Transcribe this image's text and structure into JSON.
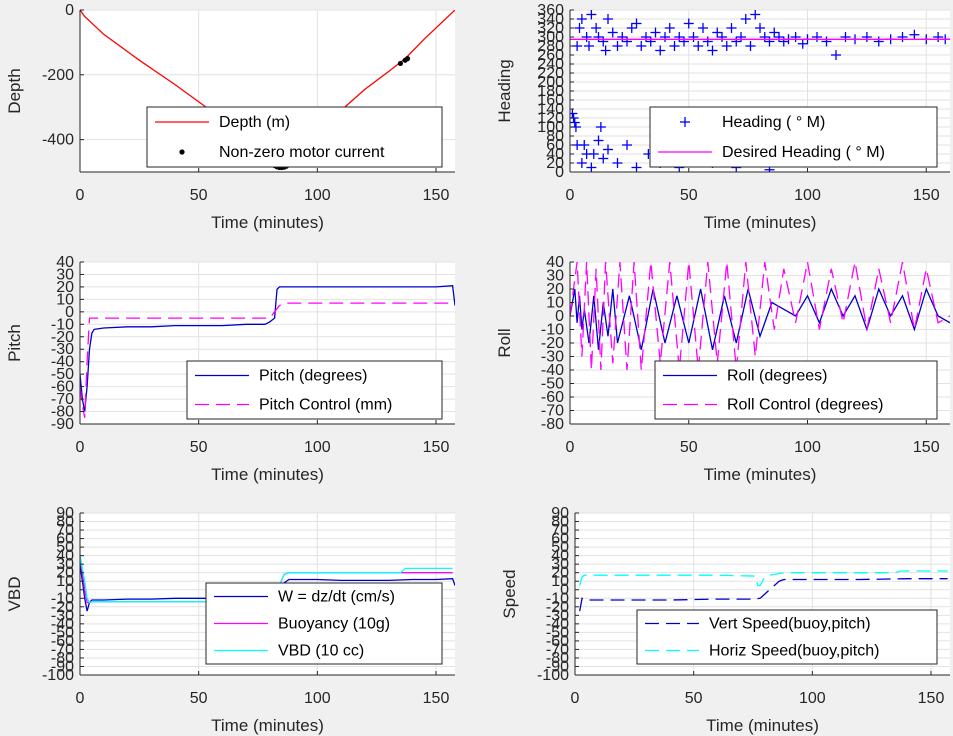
{
  "chart_data": [
    {
      "id": "depth",
      "type": "line",
      "xlabel": "Time (minutes)",
      "ylabel": "Depth",
      "xlim": [
        0,
        158
      ],
      "ylim": [
        -500,
        0
      ],
      "xticks": [
        0,
        50,
        100,
        150
      ],
      "yticks": [
        0,
        -200,
        -400
      ],
      "grid": true,
      "legend_position": "lower-right",
      "series": [
        {
          "name": "Depth (m)",
          "style": "line",
          "color": "#ff0000",
          "x": [
            0,
            2,
            10,
            25,
            40,
            55,
            70,
            78,
            82,
            85,
            88,
            92,
            100,
            110,
            120,
            130,
            137,
            145,
            158
          ],
          "y": [
            0,
            -20,
            -75,
            -155,
            -230,
            -310,
            -400,
            -455,
            -480,
            -487,
            -480,
            -450,
            -380,
            -310,
            -245,
            -190,
            -150,
            -90,
            0
          ]
        },
        {
          "name": "Non-zero motor current",
          "style": "dots",
          "color": "#000000",
          "x": [
            81,
            82,
            83,
            84,
            85,
            86,
            87,
            88,
            135,
            137,
            138
          ],
          "y": [
            -476,
            -480,
            -484,
            -486,
            -486,
            -485,
            -482,
            -478,
            -165,
            -155,
            -150
          ]
        }
      ]
    },
    {
      "id": "heading",
      "type": "scatter",
      "xlabel": "Time (minutes)",
      "ylabel": "Heading",
      "xlim": [
        0,
        160
      ],
      "ylim": [
        0,
        360
      ],
      "xticks": [
        0,
        50,
        100,
        150
      ],
      "yticks": [
        0,
        20,
        40,
        60,
        80,
        100,
        120,
        140,
        160,
        180,
        200,
        220,
        240,
        260,
        280,
        300,
        320,
        340,
        360
      ],
      "grid": true,
      "legend_position": "lower-right",
      "series": [
        {
          "name": "Heading (   ° M)",
          "style": "plus",
          "color": "#0000ff",
          "x": [
            1,
            1.5,
            2,
            2.5,
            3,
            4,
            5,
            6,
            7,
            8,
            9,
            10,
            11,
            12,
            13,
            14,
            15,
            16,
            18,
            20,
            22,
            24,
            26,
            28,
            30,
            32,
            34,
            36,
            38,
            40,
            42,
            44,
            46,
            48,
            50,
            52,
            54,
            56,
            58,
            60,
            62,
            64,
            66,
            68,
            70,
            72,
            74,
            76,
            78,
            80,
            82,
            84,
            86,
            88,
            90,
            92,
            95,
            98,
            100,
            104,
            108,
            112,
            116,
            120,
            125,
            130,
            135,
            140,
            145,
            150,
            155,
            158,
            3,
            5,
            7,
            9,
            12,
            14,
            16,
            20,
            24,
            28,
            33,
            38,
            42,
            46,
            50,
            55,
            60,
            65,
            70,
            74,
            78,
            84
          ],
          "y": [
            130,
            120,
            110,
            100,
            280,
            320,
            340,
            60,
            300,
            280,
            350,
            40,
            320,
            300,
            100,
            290,
            270,
            340,
            310,
            280,
            300,
            290,
            320,
            330,
            280,
            300,
            290,
            310,
            270,
            300,
            320,
            280,
            300,
            290,
            330,
            300,
            280,
            320,
            290,
            270,
            310,
            300,
            280,
            320,
            290,
            300,
            340,
            280,
            350,
            320,
            300,
            290,
            310,
            300,
            290,
            295,
            300,
            285,
            295,
            300,
            290,
            260,
            300,
            295,
            300,
            290,
            295,
            300,
            305,
            295,
            300,
            295,
            60,
            20,
            40,
            10,
            70,
            30,
            50,
            20,
            60,
            10,
            40,
            20,
            50,
            10,
            30,
            60,
            20,
            40,
            10,
            30,
            50,
            5
          ]
        },
        {
          "name": "Desired Heading (    ° M)",
          "style": "line",
          "color": "#ff00ff",
          "x": [
            0,
            160
          ],
          "y": [
            295,
            295
          ]
        }
      ]
    },
    {
      "id": "pitch",
      "type": "line",
      "xlabel": "Time (minutes)",
      "ylabel": "Pitch",
      "xlim": [
        0,
        158
      ],
      "ylim": [
        -90,
        40
      ],
      "xticks": [
        0,
        50,
        100,
        150
      ],
      "yticks": [
        40,
        30,
        20,
        10,
        0,
        -10,
        -20,
        -30,
        -40,
        -50,
        -60,
        -70,
        -80,
        -90
      ],
      "grid": true,
      "legend_position": "lower-right",
      "series": [
        {
          "name": "Pitch (degrees)",
          "style": "line",
          "color": "#0000cc",
          "x": [
            0,
            1,
            2,
            3,
            4,
            5,
            6,
            10,
            20,
            30,
            40,
            50,
            60,
            70,
            78,
            80,
            82,
            83,
            84,
            90,
            100,
            110,
            120,
            130,
            140,
            150,
            157,
            158
          ],
          "y": [
            -50,
            -70,
            -80,
            -60,
            -30,
            -17,
            -14,
            -13,
            -12,
            -12,
            -11,
            -11,
            -11,
            -10,
            -10,
            -8,
            -5,
            18,
            20,
            20,
            20,
            20,
            20,
            20,
            20,
            20,
            21,
            5
          ]
        },
        {
          "name": "Pitch Control (mm)",
          "style": "dashed",
          "color": "#ff00ff",
          "x": [
            0,
            1,
            2,
            3,
            4,
            5,
            80,
            82,
            84,
            86,
            157
          ],
          "y": [
            -60,
            -75,
            -85,
            -40,
            -5,
            -5,
            -5,
            0,
            5,
            7,
            7
          ]
        }
      ]
    },
    {
      "id": "roll",
      "type": "line",
      "xlabel": "Time (minutes)",
      "ylabel": "Roll",
      "xlim": [
        0,
        160
      ],
      "ylim": [
        -80,
        40
      ],
      "xticks": [
        0,
        50,
        100,
        150
      ],
      "yticks": [
        40,
        30,
        20,
        10,
        0,
        -10,
        -20,
        -30,
        -40,
        -50,
        -60,
        -70,
        -80
      ],
      "grid": true,
      "legend_position": "lower-right",
      "series": [
        {
          "name": "Roll (degrees)",
          "style": "line",
          "color": "#0000cc",
          "x": [
            0,
            1,
            2,
            3,
            4,
            5,
            6,
            8,
            10,
            12,
            14,
            16,
            18,
            20,
            25,
            30,
            35,
            40,
            45,
            50,
            55,
            60,
            65,
            70,
            75,
            80,
            85,
            90,
            95,
            100,
            105,
            110,
            115,
            120,
            125,
            130,
            135,
            140,
            145,
            150,
            155,
            160
          ],
          "y": [
            0,
            10,
            20,
            -5,
            15,
            -10,
            5,
            -20,
            15,
            -25,
            10,
            -15,
            20,
            -20,
            15,
            -25,
            20,
            -20,
            15,
            -20,
            20,
            -25,
            15,
            -20,
            20,
            -15,
            10,
            5,
            0,
            15,
            -5,
            20,
            0,
            15,
            -10,
            20,
            0,
            15,
            -10,
            20,
            0,
            -5
          ]
        },
        {
          "name": "Roll Control (degrees)",
          "style": "dashed",
          "color": "#ff00ff",
          "x": [
            0,
            3,
            5,
            7,
            9,
            11,
            13,
            15,
            18,
            21,
            24,
            27,
            30,
            34,
            38,
            42,
            46,
            50,
            54,
            58,
            62,
            66,
            70,
            74,
            78,
            82,
            86,
            90,
            95,
            100,
            105,
            110,
            115,
            120,
            125,
            130,
            135,
            140,
            145,
            150,
            155,
            160
          ],
          "y": [
            0,
            40,
            -30,
            40,
            -40,
            35,
            -40,
            40,
            -35,
            40,
            -40,
            40,
            -40,
            40,
            -35,
            40,
            -40,
            40,
            -40,
            40,
            -35,
            40,
            -40,
            40,
            -30,
            40,
            -10,
            35,
            -5,
            40,
            -10,
            35,
            -5,
            40,
            -10,
            35,
            -5,
            40,
            -10,
            35,
            -5,
            0
          ]
        }
      ]
    },
    {
      "id": "vbd",
      "type": "line",
      "xlabel": "Time (minutes)",
      "ylabel": "VBD",
      "xlim": [
        0,
        158
      ],
      "ylim": [
        -100,
        90
      ],
      "xticks": [
        0,
        50,
        100,
        150
      ],
      "yticks": [
        90,
        80,
        70,
        60,
        50,
        40,
        30,
        20,
        10,
        0,
        -10,
        -20,
        -30,
        -40,
        -50,
        -60,
        -70,
        -80,
        -90,
        -100
      ],
      "grid": true,
      "legend_position": "lower-right",
      "series": [
        {
          "name": "W = dz/dt (cm/s)",
          "style": "line",
          "color": "#0000cc",
          "x": [
            0,
            1,
            2,
            3,
            4,
            5,
            10,
            20,
            30,
            40,
            50,
            60,
            70,
            80,
            82,
            84,
            86,
            88,
            90,
            100,
            110,
            120,
            130,
            140,
            150,
            157,
            158
          ],
          "y": [
            30,
            10,
            -10,
            -25,
            -15,
            -12,
            -12,
            -11,
            -11,
            -10,
            -10,
            -10,
            -10,
            -9,
            -5,
            0,
            8,
            12,
            12,
            12,
            11,
            11,
            11,
            12,
            12,
            13,
            5
          ]
        },
        {
          "name": "Buoyancy (10g)",
          "style": "line",
          "color": "#ff00ff",
          "x": [
            0,
            2,
            3,
            4,
            5,
            80,
            82,
            84,
            86,
            88,
            157
          ],
          "y": [
            40,
            0,
            -15,
            -15,
            -14,
            -14,
            -8,
            5,
            18,
            20,
            20
          ]
        },
        {
          "name": "VBD (10 cc)",
          "style": "line",
          "color": "#00ffff",
          "x": [
            0,
            2,
            3,
            4,
            5,
            80,
            82,
            84,
            86,
            88,
            135,
            137,
            157
          ],
          "y": [
            40,
            10,
            -10,
            -15,
            -14,
            -14,
            -8,
            5,
            18,
            20,
            20,
            25,
            25
          ]
        }
      ]
    },
    {
      "id": "speed",
      "type": "line",
      "xlabel": "Time (minutes)",
      "ylabel": "Speed",
      "xlim": [
        0,
        158
      ],
      "ylim": [
        -100,
        90
      ],
      "xticks": [
        0,
        50,
        100,
        150
      ],
      "yticks": [
        90,
        80,
        70,
        60,
        50,
        40,
        30,
        20,
        10,
        0,
        -10,
        -20,
        -30,
        -40,
        -50,
        -60,
        -70,
        -80,
        -90,
        -100
      ],
      "grid": true,
      "legend_position": "lower-right",
      "series": [
        {
          "name": "Vert Speed(buoy,pitch)",
          "style": "dashed",
          "color": "#0000cc",
          "x": [
            2,
            3,
            4,
            10,
            20,
            40,
            60,
            75,
            78,
            80,
            82,
            84,
            86,
            88,
            100,
            120,
            140,
            150,
            157
          ],
          "y": [
            -25,
            -10,
            -12,
            -12,
            -12,
            -12,
            -11,
            -11,
            -10,
            -5,
            0,
            5,
            10,
            12,
            12,
            12,
            13,
            13,
            13
          ]
        },
        {
          "name": "Horiz Speed(buoy,pitch)",
          "style": "dashed",
          "color": "#00ffff",
          "x": [
            2,
            3,
            4,
            10,
            20,
            40,
            60,
            76,
            77,
            78,
            80,
            82,
            84,
            86,
            88,
            100,
            120,
            135,
            137,
            157
          ],
          "y": [
            5,
            15,
            17,
            17,
            17,
            17,
            17,
            16,
            5,
            5,
            15,
            17,
            18,
            19,
            20,
            20,
            20,
            20,
            22,
            22
          ]
        }
      ]
    }
  ]
}
